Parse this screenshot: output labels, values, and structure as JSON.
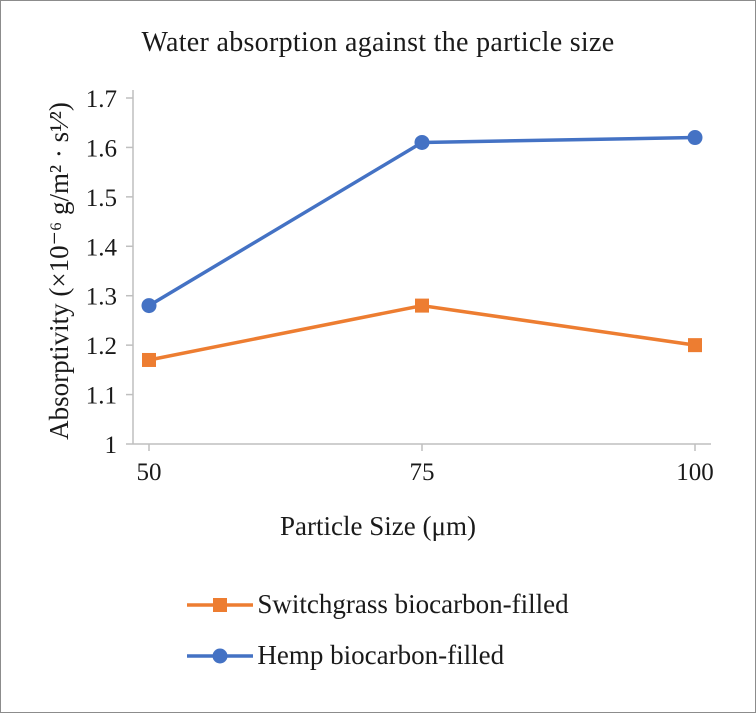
{
  "chart_data": {
    "type": "line",
    "title": "Water absorption against the particle size",
    "xlabel": "Particle Size (μm)",
    "ylabel": "Absorptivity (×10⁻⁶ g/m² · s¹⁄²)",
    "x": [
      50,
      75,
      100
    ],
    "x_tick_labels": [
      "50",
      "75",
      "100"
    ],
    "ylim": [
      1,
      1.7
    ],
    "y_tick_step": 0.1,
    "y_tick_labels": [
      "1",
      "1.1",
      "1.2",
      "1.3",
      "1.4",
      "1.5",
      "1.6",
      "1.7"
    ],
    "grid": false,
    "legend_position": "bottom",
    "axis_color": "#BFBFBF",
    "text_color": "#1a1a1a",
    "series": [
      {
        "name": "Switchgrass biocarbon-filled",
        "marker": "square",
        "color": "#ED7D31",
        "values": [
          1.17,
          1.28,
          1.2
        ]
      },
      {
        "name": "Hemp biocarbon-filled",
        "marker": "circle",
        "color": "#4472C4",
        "values": [
          1.28,
          1.61,
          1.62
        ]
      }
    ]
  }
}
